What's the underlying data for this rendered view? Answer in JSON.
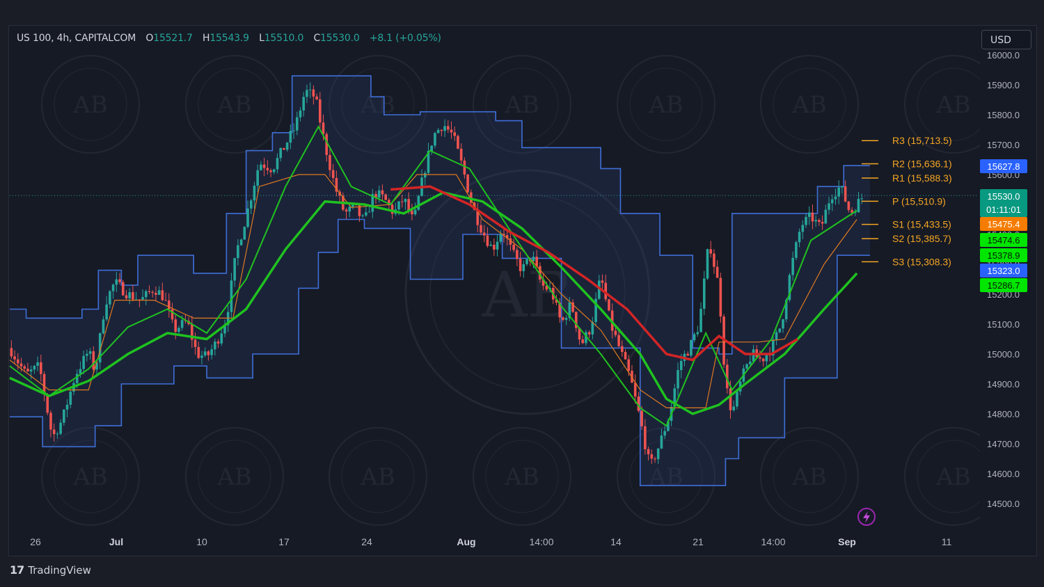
{
  "symbol_line": {
    "symbol": "US 100, 4h, CAPITALCOM",
    "o_label": "O",
    "o": "15521.7",
    "h_label": "H",
    "h": "15543.9",
    "l_label": "L",
    "l": "15510.0",
    "c_label": "C",
    "c": "15530.0",
    "change": "+8.1 (+0.05%)"
  },
  "currency_button": "USD",
  "brand": {
    "name": "TradingView",
    "logo_text": "17"
  },
  "watermark": {
    "text": "ARABIAN BUSINESS ACADEMY",
    "monogram": "AB"
  },
  "colors": {
    "up": "#26a69a",
    "down": "#ef5350",
    "band": "#3f6fd8",
    "ema_green": "#1fc21f",
    "ema_red": "#d42525",
    "pivot": "#f5a623"
  },
  "chart_data": {
    "type": "candlestick",
    "symbol": "US 100",
    "timeframe": "4h",
    "ylim": [
      14450,
      16030
    ],
    "y_ticks": [
      "14500.0",
      "14600.0",
      "14700.0",
      "14800.0",
      "14900.0",
      "15000.0",
      "15100.0",
      "15200.0",
      "15300.0",
      "15400.0",
      "15500.0",
      "15600.0",
      "15700.0",
      "15800.0",
      "15900.0",
      "16000.0"
    ],
    "x_ticks": [
      {
        "label": "26",
        "bold": false
      },
      {
        "label": "Jul",
        "bold": true
      },
      {
        "label": "10",
        "bold": false
      },
      {
        "label": "17",
        "bold": false
      },
      {
        "label": "24",
        "bold": false
      },
      {
        "label": "Aug",
        "bold": true
      },
      {
        "label": "14:00",
        "bold": false
      },
      {
        "label": "14",
        "bold": false
      },
      {
        "label": "21",
        "bold": false
      },
      {
        "label": "14:00",
        "bold": false
      },
      {
        "label": "Sep",
        "bold": true
      },
      {
        "label": "11",
        "bold": false
      }
    ],
    "close_path": [
      {
        "t": 0.0,
        "y": 15020
      },
      {
        "t": 2.5,
        "y": 14930
      },
      {
        "t": 4.5,
        "y": 14960
      },
      {
        "t": 6.5,
        "y": 14720
      },
      {
        "t": 8,
        "y": 14780
      },
      {
        "t": 10,
        "y": 14930
      },
      {
        "t": 12,
        "y": 15010
      },
      {
        "t": 13,
        "y": 14940
      },
      {
        "t": 14.5,
        "y": 15170
      },
      {
        "t": 16,
        "y": 15240
      },
      {
        "t": 18,
        "y": 15200
      },
      {
        "t": 20,
        "y": 15180
      },
      {
        "t": 22,
        "y": 15220
      },
      {
        "t": 23.5,
        "y": 15190
      },
      {
        "t": 25,
        "y": 15080
      },
      {
        "t": 27,
        "y": 15110
      },
      {
        "t": 28.5,
        "y": 15000
      },
      {
        "t": 30,
        "y": 14990
      },
      {
        "t": 31.5,
        "y": 15040
      },
      {
        "t": 33,
        "y": 15120
      },
      {
        "t": 34.5,
        "y": 15340
      },
      {
        "t": 36,
        "y": 15460
      },
      {
        "t": 38,
        "y": 15640
      },
      {
        "t": 40,
        "y": 15620
      },
      {
        "t": 42,
        "y": 15700
      },
      {
        "t": 43.5,
        "y": 15760
      },
      {
        "t": 45,
        "y": 15880
      },
      {
        "t": 46.5,
        "y": 15860
      },
      {
        "t": 48,
        "y": 15700
      },
      {
        "t": 49.5,
        "y": 15560
      },
      {
        "t": 51,
        "y": 15470
      },
      {
        "t": 52.5,
        "y": 15490
      },
      {
        "t": 54,
        "y": 15440
      },
      {
        "t": 55.5,
        "y": 15540
      },
      {
        "t": 57,
        "y": 15520
      },
      {
        "t": 58.5,
        "y": 15470
      },
      {
        "t": 60,
        "y": 15520
      },
      {
        "t": 61.5,
        "y": 15440
      },
      {
        "t": 63,
        "y": 15600
      },
      {
        "t": 64.5,
        "y": 15730
      },
      {
        "t": 66,
        "y": 15770
      },
      {
        "t": 67.5,
        "y": 15730
      },
      {
        "t": 69,
        "y": 15620
      },
      {
        "t": 70.5,
        "y": 15490
      },
      {
        "t": 72,
        "y": 15410
      },
      {
        "t": 73.5,
        "y": 15350
      },
      {
        "t": 75,
        "y": 15420
      },
      {
        "t": 76.5,
        "y": 15340
      },
      {
        "t": 78,
        "y": 15280
      },
      {
        "t": 79.5,
        "y": 15330
      },
      {
        "t": 81,
        "y": 15230
      },
      {
        "t": 82.5,
        "y": 15210
      },
      {
        "t": 84,
        "y": 15100
      },
      {
        "t": 85.5,
        "y": 15170
      },
      {
        "t": 87,
        "y": 15030
      },
      {
        "t": 88.5,
        "y": 15090
      },
      {
        "t": 90,
        "y": 15260
      },
      {
        "t": 91.5,
        "y": 15100
      },
      {
        "t": 93,
        "y": 15010
      },
      {
        "t": 94.5,
        "y": 14920
      },
      {
        "t": 96,
        "y": 14780
      },
      {
        "t": 97.5,
        "y": 14620
      },
      {
        "t": 99,
        "y": 14700
      },
      {
        "t": 100.5,
        "y": 14800
      },
      {
        "t": 102,
        "y": 14970
      },
      {
        "t": 103.5,
        "y": 15020
      },
      {
        "t": 105,
        "y": 15100
      },
      {
        "t": 106.5,
        "y": 15380
      },
      {
        "t": 108,
        "y": 15220
      },
      {
        "t": 109,
        "y": 14900
      },
      {
        "t": 110,
        "y": 14800
      },
      {
        "t": 111.5,
        "y": 14920
      },
      {
        "t": 113,
        "y": 15000
      },
      {
        "t": 114.5,
        "y": 14980
      },
      {
        "t": 116,
        "y": 15020
      },
      {
        "t": 117.5,
        "y": 15100
      },
      {
        "t": 119,
        "y": 15290
      },
      {
        "t": 120.5,
        "y": 15430
      },
      {
        "t": 122,
        "y": 15460
      },
      {
        "t": 123.5,
        "y": 15420
      },
      {
        "t": 125,
        "y": 15530
      },
      {
        "t": 126.5,
        "y": 15560
      },
      {
        "t": 128,
        "y": 15470
      },
      {
        "t": 130,
        "y": 15530
      }
    ],
    "upper_band": [
      {
        "t": 0,
        "y": 15150
      },
      {
        "t": 2.5,
        "y": 15150
      },
      {
        "t": 2.5,
        "y": 15120
      },
      {
        "t": 11,
        "y": 15120
      },
      {
        "t": 11,
        "y": 15150
      },
      {
        "t": 13.5,
        "y": 15150
      },
      {
        "t": 13.5,
        "y": 15280
      },
      {
        "t": 17,
        "y": 15280
      },
      {
        "t": 17,
        "y": 15230
      },
      {
        "t": 19.5,
        "y": 15230
      },
      {
        "t": 19.5,
        "y": 15330
      },
      {
        "t": 28,
        "y": 15330
      },
      {
        "t": 28,
        "y": 15270
      },
      {
        "t": 33,
        "y": 15270
      },
      {
        "t": 33,
        "y": 15470
      },
      {
        "t": 36,
        "y": 15470
      },
      {
        "t": 36,
        "y": 15680
      },
      {
        "t": 40,
        "y": 15680
      },
      {
        "t": 40,
        "y": 15740
      },
      {
        "t": 43,
        "y": 15740
      },
      {
        "t": 43,
        "y": 15930
      },
      {
        "t": 55,
        "y": 15930
      },
      {
        "t": 55,
        "y": 15860
      },
      {
        "t": 57,
        "y": 15860
      },
      {
        "t": 57,
        "y": 15800
      },
      {
        "t": 62.5,
        "y": 15800
      },
      {
        "t": 62.5,
        "y": 15810
      },
      {
        "t": 74,
        "y": 15810
      },
      {
        "t": 74,
        "y": 15780
      },
      {
        "t": 78,
        "y": 15780
      },
      {
        "t": 78,
        "y": 15690
      },
      {
        "t": 90,
        "y": 15690
      },
      {
        "t": 90,
        "y": 15620
      },
      {
        "t": 93,
        "y": 15620
      },
      {
        "t": 93,
        "y": 15470
      },
      {
        "t": 99,
        "y": 15470
      },
      {
        "t": 99,
        "y": 15330
      },
      {
        "t": 104,
        "y": 15330
      },
      {
        "t": 104,
        "y": 15020
      },
      {
        "t": 108,
        "y": 15020
      },
      {
        "t": 108,
        "y": 15000
      },
      {
        "t": 110,
        "y": 15000
      },
      {
        "t": 110,
        "y": 15470
      },
      {
        "t": 123,
        "y": 15470
      },
      {
        "t": 123,
        "y": 15560
      },
      {
        "t": 127,
        "y": 15560
      },
      {
        "t": 127,
        "y": 15630
      },
      {
        "t": 131,
        "y": 15630
      }
    ],
    "lower_band": [
      {
        "t": 0,
        "y": 14790
      },
      {
        "t": 5,
        "y": 14790
      },
      {
        "t": 5,
        "y": 14690
      },
      {
        "t": 13,
        "y": 14690
      },
      {
        "t": 13,
        "y": 14760
      },
      {
        "t": 17,
        "y": 14760
      },
      {
        "t": 17,
        "y": 14900
      },
      {
        "t": 25,
        "y": 14900
      },
      {
        "t": 25,
        "y": 14960
      },
      {
        "t": 30,
        "y": 14960
      },
      {
        "t": 30,
        "y": 14920
      },
      {
        "t": 37,
        "y": 14920
      },
      {
        "t": 37,
        "y": 15000
      },
      {
        "t": 44,
        "y": 15000
      },
      {
        "t": 44,
        "y": 15220
      },
      {
        "t": 47,
        "y": 15220
      },
      {
        "t": 47,
        "y": 15340
      },
      {
        "t": 50,
        "y": 15340
      },
      {
        "t": 50,
        "y": 15450
      },
      {
        "t": 54,
        "y": 15450
      },
      {
        "t": 54,
        "y": 15420
      },
      {
        "t": 61,
        "y": 15420
      },
      {
        "t": 61,
        "y": 15250
      },
      {
        "t": 69,
        "y": 15250
      },
      {
        "t": 69,
        "y": 15400
      },
      {
        "t": 70,
        "y": 15400
      },
      {
        "t": 70,
        "y": 15400
      },
      {
        "t": 75,
        "y": 15400
      },
      {
        "t": 75,
        "y": 15320
      },
      {
        "t": 84,
        "y": 15320
      },
      {
        "t": 84,
        "y": 15020
      },
      {
        "t": 90,
        "y": 15020
      },
      {
        "t": 90,
        "y": 15020
      },
      {
        "t": 96,
        "y": 15020
      },
      {
        "t": 96,
        "y": 14560
      },
      {
        "t": 103,
        "y": 14560
      },
      {
        "t": 103,
        "y": 14560
      },
      {
        "t": 109,
        "y": 14560
      },
      {
        "t": 109,
        "y": 14650
      },
      {
        "t": 111,
        "y": 14650
      },
      {
        "t": 111,
        "y": 14720
      },
      {
        "t": 118,
        "y": 14720
      },
      {
        "t": 118,
        "y": 14920
      },
      {
        "t": 126,
        "y": 14920
      },
      {
        "t": 126,
        "y": 15330
      },
      {
        "t": 128,
        "y": 15330
      },
      {
        "t": 131,
        "y": 15330
      }
    ],
    "ema_green_thick": [
      {
        "t": 0,
        "y": 14920
      },
      {
        "t": 6,
        "y": 14860
      },
      {
        "t": 12,
        "y": 14910
      },
      {
        "t": 18,
        "y": 15000
      },
      {
        "t": 24,
        "y": 15070
      },
      {
        "t": 30,
        "y": 15050
      },
      {
        "t": 36,
        "y": 15150
      },
      {
        "t": 42,
        "y": 15350
      },
      {
        "t": 48,
        "y": 15510
      },
      {
        "t": 54,
        "y": 15500
      },
      {
        "t": 60,
        "y": 15470
      },
      {
        "t": 66,
        "y": 15540
      },
      {
        "t": 72,
        "y": 15510
      },
      {
        "t": 78,
        "y": 15420
      },
      {
        "t": 84,
        "y": 15290
      },
      {
        "t": 90,
        "y": 15150
      },
      {
        "t": 96,
        "y": 15000
      },
      {
        "t": 100,
        "y": 14850
      },
      {
        "t": 104,
        "y": 14800
      },
      {
        "t": 108,
        "y": 14830
      },
      {
        "t": 112,
        "y": 14900
      },
      {
        "t": 118,
        "y": 15000
      },
      {
        "t": 124,
        "y": 15150
      },
      {
        "t": 129,
        "y": 15270
      }
    ],
    "ema_green_mid": [
      {
        "t": 0,
        "y": 14960
      },
      {
        "t": 6,
        "y": 14860
      },
      {
        "t": 12,
        "y": 14950
      },
      {
        "t": 18,
        "y": 15090
      },
      {
        "t": 24,
        "y": 15150
      },
      {
        "t": 30,
        "y": 15070
      },
      {
        "t": 36,
        "y": 15250
      },
      {
        "t": 42,
        "y": 15560
      },
      {
        "t": 47,
        "y": 15760
      },
      {
        "t": 52,
        "y": 15560
      },
      {
        "t": 58,
        "y": 15500
      },
      {
        "t": 64,
        "y": 15680
      },
      {
        "t": 70,
        "y": 15620
      },
      {
        "t": 76,
        "y": 15420
      },
      {
        "t": 84,
        "y": 15160
      },
      {
        "t": 90,
        "y": 15000
      },
      {
        "t": 96,
        "y": 14820
      },
      {
        "t": 100,
        "y": 14760
      },
      {
        "t": 106,
        "y": 15070
      },
      {
        "t": 110,
        "y": 14880
      },
      {
        "t": 116,
        "y": 15050
      },
      {
        "t": 122,
        "y": 15380
      },
      {
        "t": 129,
        "y": 15480
      }
    ],
    "ema_red": [
      {
        "t": 58,
        "y": 15550
      },
      {
        "t": 64,
        "y": 15560
      },
      {
        "t": 70,
        "y": 15500
      },
      {
        "t": 76,
        "y": 15410
      },
      {
        "t": 82,
        "y": 15340
      },
      {
        "t": 88,
        "y": 15250
      },
      {
        "t": 94,
        "y": 15150
      },
      {
        "t": 100,
        "y": 15000
      },
      {
        "t": 104,
        "y": 14980
      },
      {
        "t": 108,
        "y": 15060
      },
      {
        "t": 112,
        "y": 15000
      },
      {
        "t": 116,
        "y": 15000
      },
      {
        "t": 120,
        "y": 15050
      }
    ],
    "ema_orange": [
      {
        "t": 0,
        "y": 14980
      },
      {
        "t": 6,
        "y": 14880
      },
      {
        "t": 12,
        "y": 14880
      },
      {
        "t": 16,
        "y": 15180
      },
      {
        "t": 22,
        "y": 15180
      },
      {
        "t": 28,
        "y": 15120
      },
      {
        "t": 34,
        "y": 15120
      },
      {
        "t": 38,
        "y": 15560
      },
      {
        "t": 44,
        "y": 15600
      },
      {
        "t": 48,
        "y": 15600
      },
      {
        "t": 52,
        "y": 15490
      },
      {
        "t": 58,
        "y": 15500
      },
      {
        "t": 62,
        "y": 15600
      },
      {
        "t": 68,
        "y": 15600
      },
      {
        "t": 72,
        "y": 15450
      },
      {
        "t": 78,
        "y": 15350
      },
      {
        "t": 84,
        "y": 15200
      },
      {
        "t": 90,
        "y": 15080
      },
      {
        "t": 96,
        "y": 14880
      },
      {
        "t": 100,
        "y": 14820
      },
      {
        "t": 106,
        "y": 14820
      },
      {
        "t": 108,
        "y": 15040
      },
      {
        "t": 114,
        "y": 15040
      },
      {
        "t": 118,
        "y": 15050
      },
      {
        "t": 124,
        "y": 15300
      },
      {
        "t": 129,
        "y": 15450
      }
    ],
    "last_close_line": 15530.0,
    "pivot_levels": [
      {
        "name": "R3",
        "label": "R3 (15,713.5)",
        "value": 15713.5
      },
      {
        "name": "R2",
        "label": "R2 (15,636.1)",
        "value": 15636.1
      },
      {
        "name": "R1",
        "label": "R1 (15,588.3)",
        "value": 15588.3
      },
      {
        "name": "P",
        "label": "P (15,510.9)",
        "value": 15510.9
      },
      {
        "name": "S1",
        "label": "S1 (15,433.5)",
        "value": 15433.5
      },
      {
        "name": "S2",
        "label": "S2 (15,385.7)",
        "value": 15385.7
      },
      {
        "name": "S3",
        "label": "S3 (15,308.3)",
        "value": 15308.3
      }
    ],
    "price_tags": [
      {
        "value": 15627.8,
        "text": "15627.8",
        "color": "#2962ff"
      },
      {
        "value": 15530.0,
        "text": "15530.0",
        "sub": "01:11:01",
        "color": "#089981"
      },
      {
        "value": 15475.4,
        "text": "15475.4",
        "color": "#f57c00"
      },
      {
        "value": 15474.6,
        "text": "15474.6",
        "color": "#00e600"
      },
      {
        "value": 15378.9,
        "text": "15378.9",
        "color": "#00e600"
      },
      {
        "value": 15323.0,
        "text": "15323.0",
        "color": "#2962ff"
      },
      {
        "value": 15286.7,
        "text": "15286.7",
        "color": "#00e600"
      }
    ]
  }
}
